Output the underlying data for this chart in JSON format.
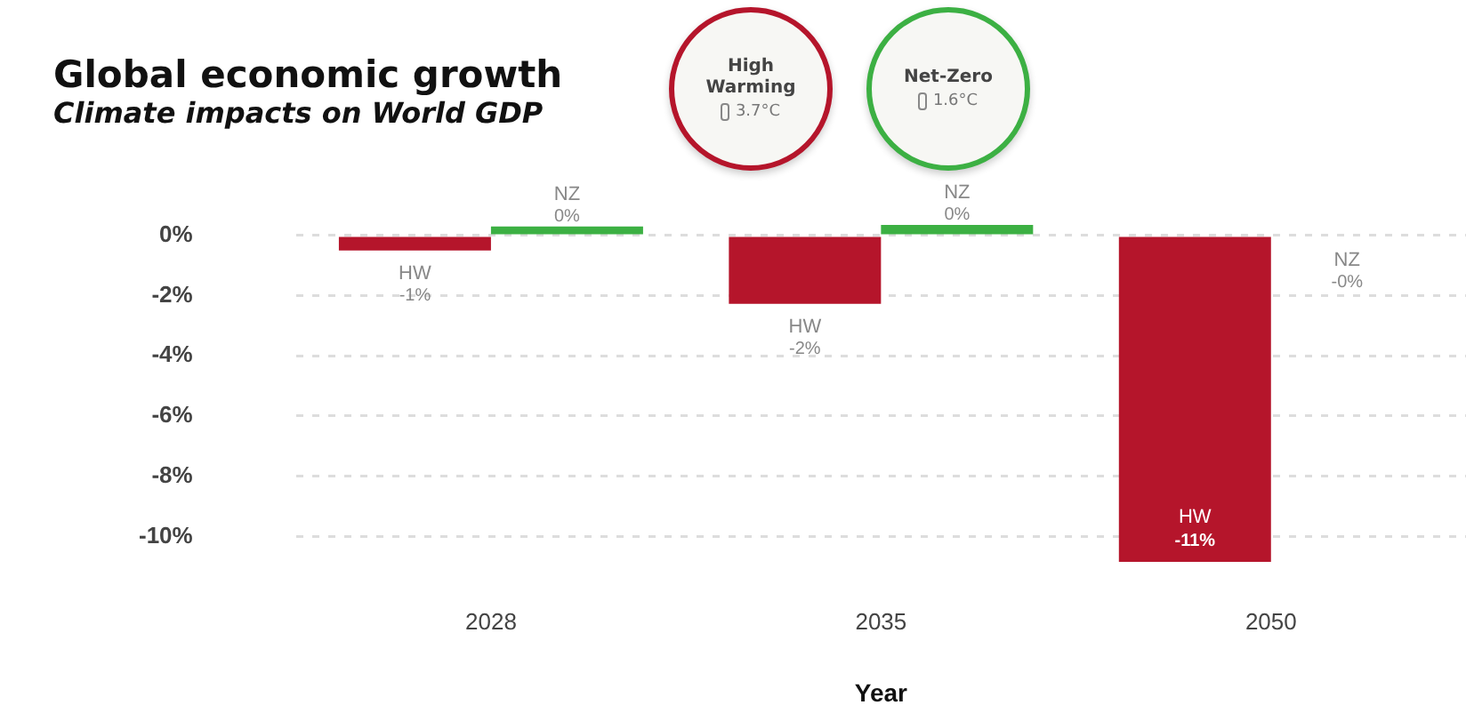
{
  "chart_data": {
    "type": "bar",
    "title": "Global economic growth",
    "subtitle": "Climate impacts on World GDP",
    "xlabel": "Year",
    "categories": [
      "2028",
      "2035",
      "2050"
    ],
    "series": [
      {
        "name": "HW",
        "color": "#b5152b",
        "values": [
          -0.5,
          -2.27,
          -10.85
        ],
        "value_labels": [
          "-1%",
          "-2%",
          "-11%"
        ]
      },
      {
        "name": "NZ",
        "color": "#3cb043",
        "values": [
          0.3,
          0.35,
          -0.05
        ],
        "value_labels": [
          "0%",
          "0%",
          "-0%"
        ]
      }
    ],
    "ylim": [
      -11,
      0.5
    ],
    "yticks": [
      {
        "value": 0,
        "label": "0%"
      },
      {
        "value": -2,
        "label": "-2%"
      },
      {
        "value": -4,
        "label": "-4%"
      },
      {
        "value": -6,
        "label": "-6%"
      },
      {
        "value": -8,
        "label": "-8%"
      },
      {
        "value": -10,
        "label": "-10%"
      }
    ],
    "grid": "y",
    "legend": false,
    "annotations": [
      "High Warming",
      "3.7°C",
      "Net-Zero",
      "1.6°C"
    ]
  }
}
